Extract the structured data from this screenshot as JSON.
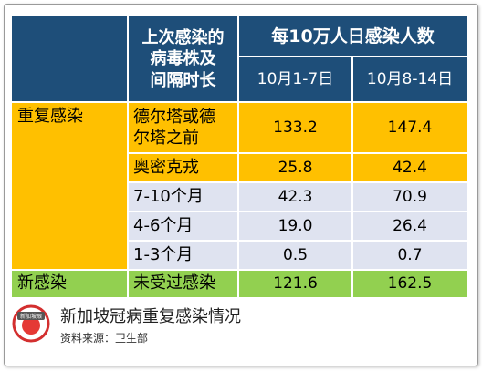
{
  "table": {
    "header": {
      "col1": "上次感染的\n病毒株及\n间隔时长",
      "group": "每10万人日感染人数",
      "period1": "10月1-7日",
      "period2": "10月8-14日"
    },
    "reinfection_label": "重复感染",
    "new_label": "新感染",
    "rows": [
      {
        "label": "德尔塔或德\n尔塔之前",
        "v1": "133.2",
        "v2": "147.4"
      },
      {
        "label": "奥密克戎",
        "v1": "25.8",
        "v2": "42.4"
      },
      {
        "label": "7-10个月",
        "v1": "42.3",
        "v2": "70.9"
      },
      {
        "label": "4-6个月",
        "v1": "19.0",
        "v2": "26.4"
      },
      {
        "label": "1-3个月",
        "v1": "0.5",
        "v2": "0.7"
      },
      {
        "label": "未受过感染",
        "v1": "121.6",
        "v2": "162.5"
      }
    ]
  },
  "footer": {
    "title": "新加坡冠病重复感染情况",
    "source": "资料来源：卫生部"
  },
  "logo": {
    "text": "新加坡眼"
  },
  "colors": {
    "header": "#1e4e79",
    "reinfection": "#ffc000",
    "row_light": "#dfe3f0",
    "new_infection": "#92d050"
  }
}
